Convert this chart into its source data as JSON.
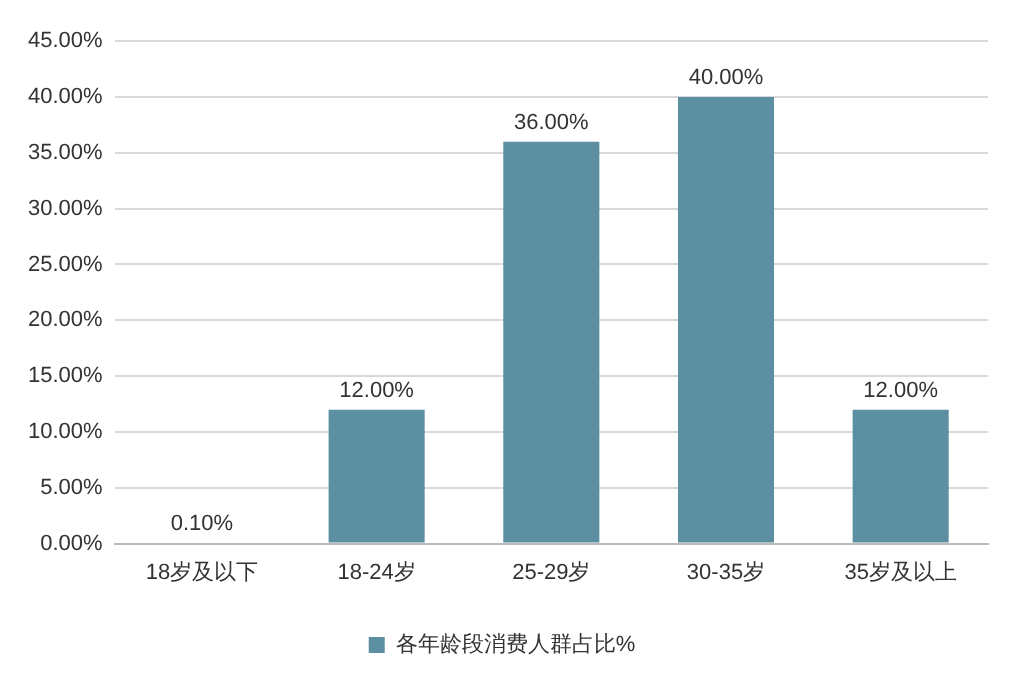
{
  "chart_data": {
    "type": "bar",
    "categories": [
      "18岁及以下",
      "18-24岁",
      "25-29岁",
      "30-35岁",
      "35岁及以上"
    ],
    "series": [
      {
        "name": "各年龄段消费人群占比%",
        "color": "#5b8fa1",
        "values": [
          0.1,
          12,
          36,
          40,
          12
        ],
        "value_labels": [
          "0.10%",
          "12.00%",
          "36.00%",
          "40.00%",
          "12.00%"
        ]
      }
    ],
    "ylim": [
      0,
      45
    ],
    "yticks": [
      {
        "value": 0,
        "label": "0.00%"
      },
      {
        "value": 5,
        "label": "5.00%"
      },
      {
        "value": 10,
        "label": "10.00%"
      },
      {
        "value": 15,
        "label": "15.00%"
      },
      {
        "value": 20,
        "label": "20.00%"
      },
      {
        "value": 25,
        "label": "25.00%"
      },
      {
        "value": 30,
        "label": "30.00%"
      },
      {
        "value": 35,
        "label": "35.00%"
      },
      {
        "value": 40,
        "label": "40.00%"
      },
      {
        "value": 45,
        "label": "45.00%"
      }
    ],
    "grid": "y",
    "legend": "bottom"
  }
}
